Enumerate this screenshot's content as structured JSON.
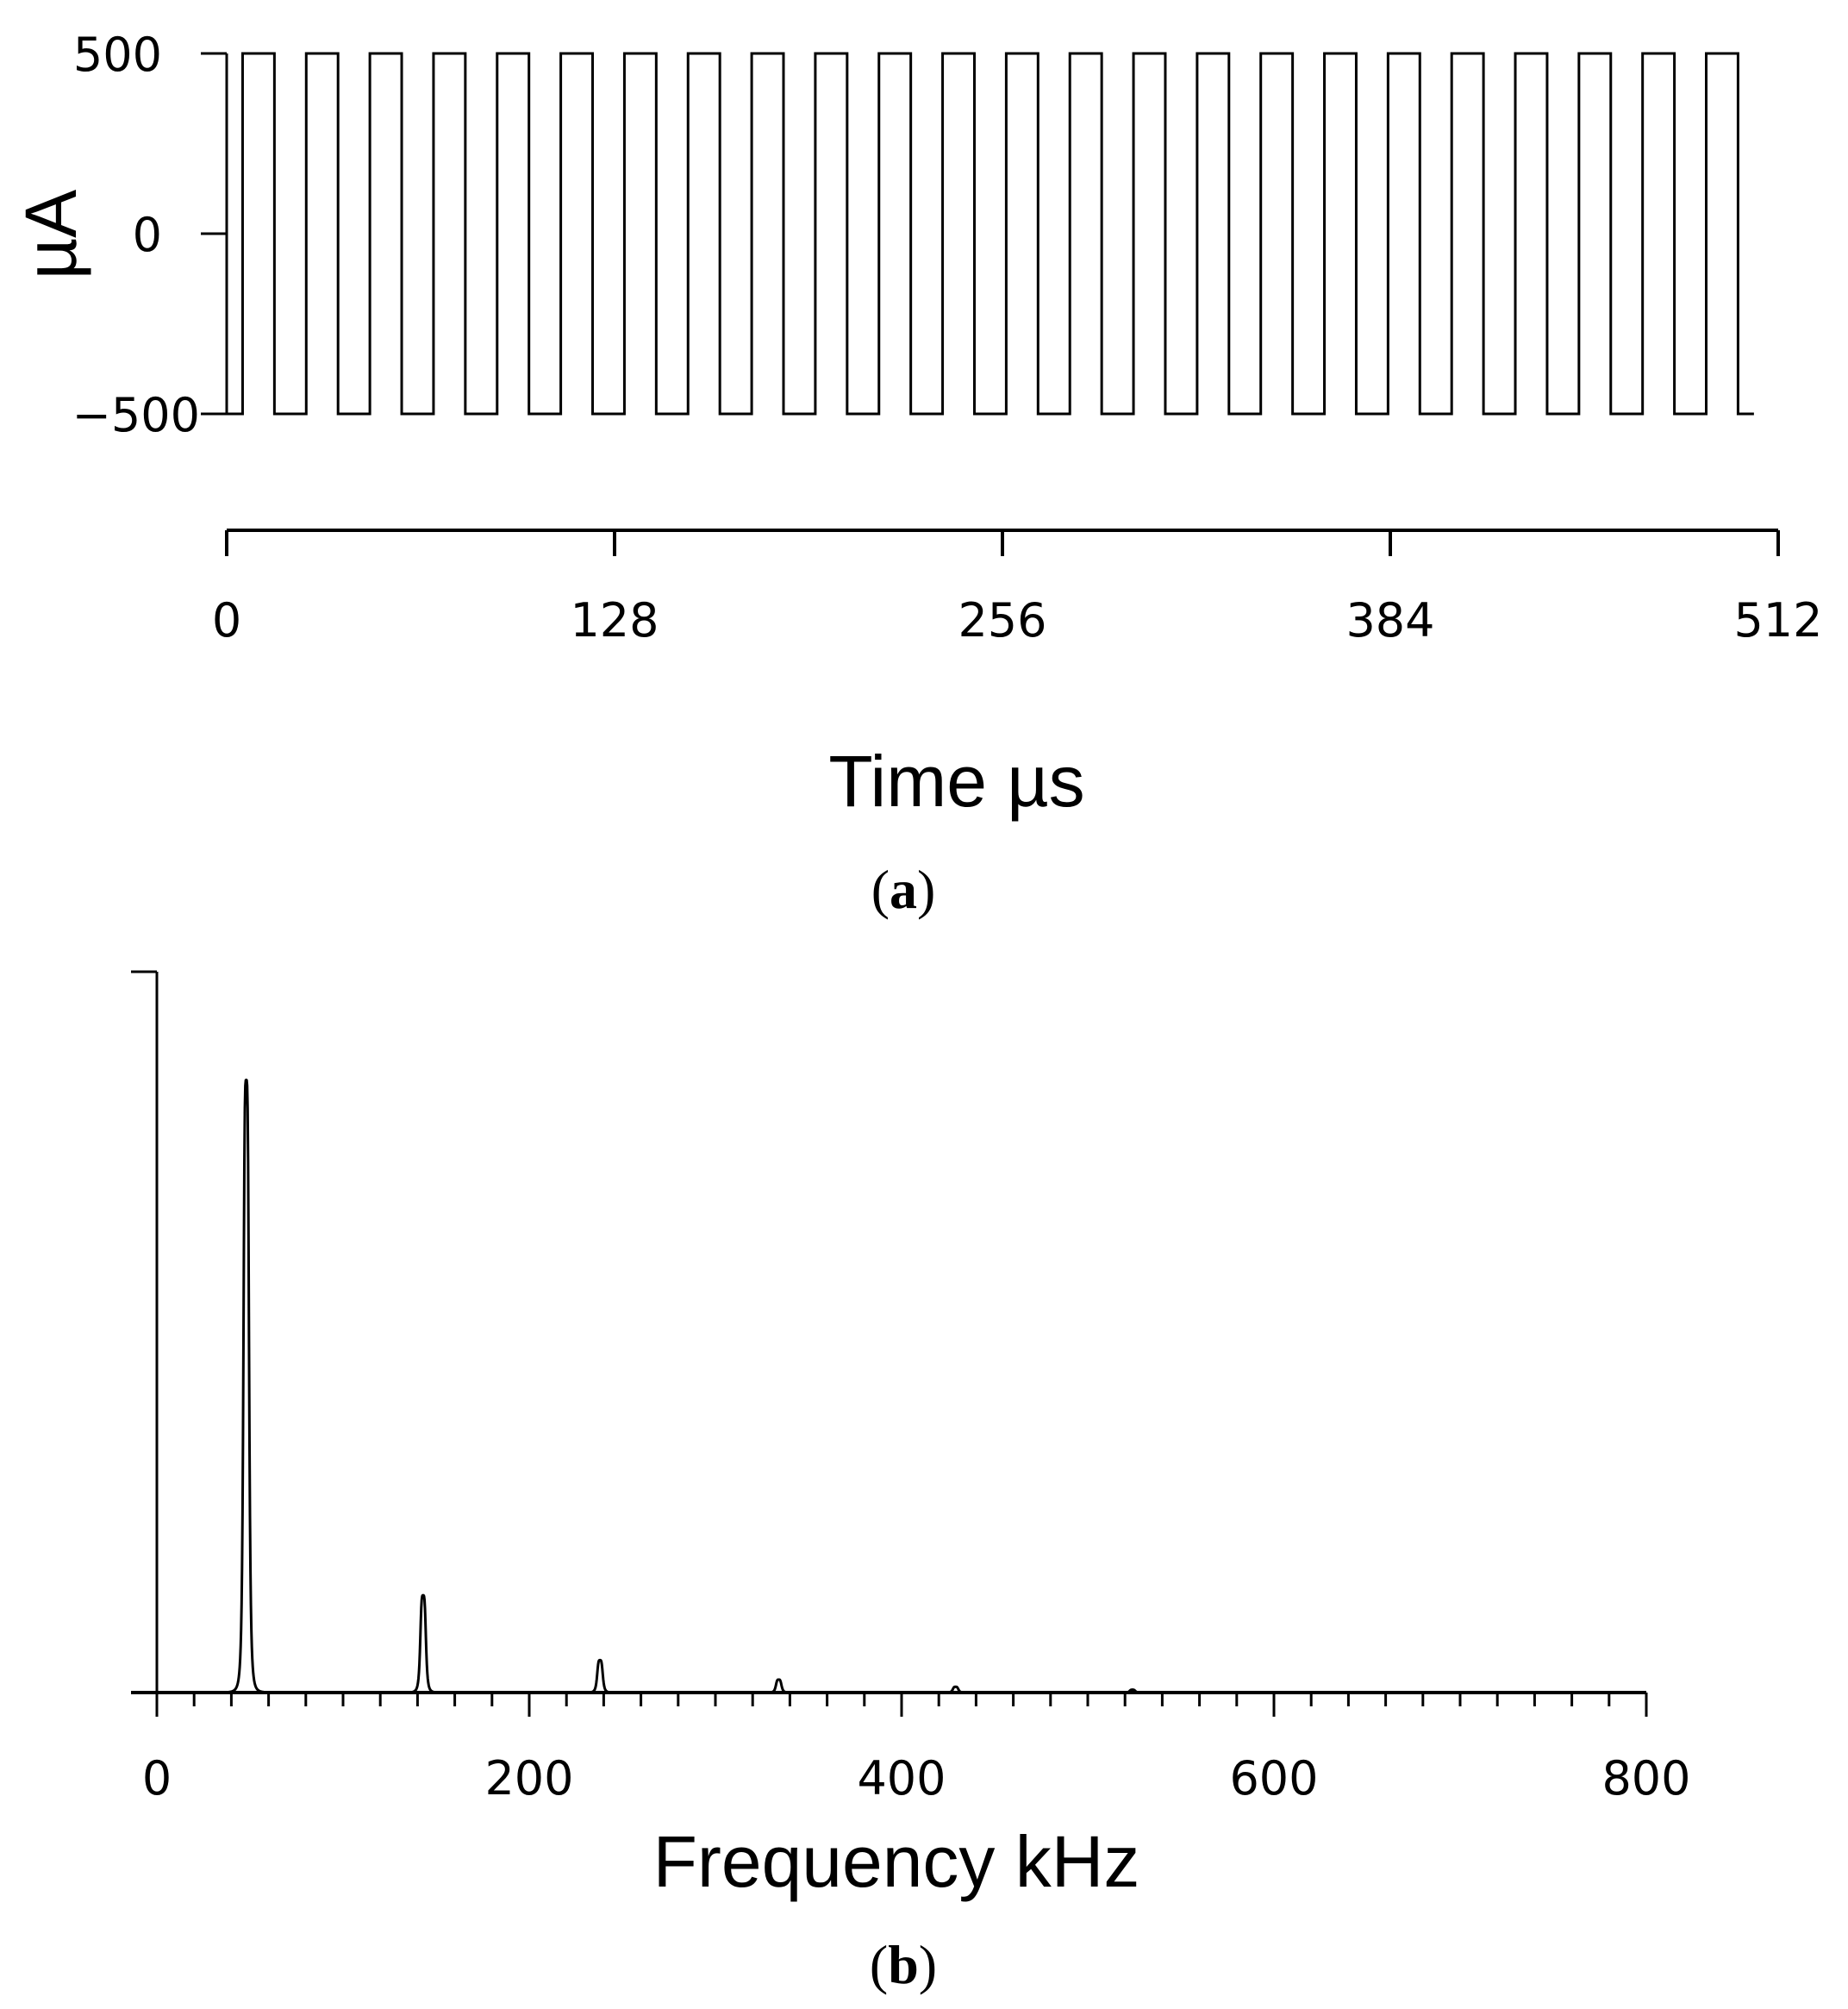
{
  "chart_data": [
    {
      "type": "line",
      "panel_label": "a",
      "xlabel": "Time  µs",
      "ylabel": "µA",
      "xlim": [
        0,
        512
      ],
      "ylim": [
        -500,
        500
      ],
      "x_ticks": [
        "0",
        "128",
        "256",
        "384",
        "512"
      ],
      "y_ticks": [
        "500",
        "0",
        "−500"
      ],
      "waveform": "square",
      "period_us": 21,
      "num_cycles": 24,
      "start_us": 0,
      "low_value": -500,
      "high_value": 500,
      "grid": false
    },
    {
      "type": "line",
      "panel_label": "b",
      "xlabel": "Frequency kHz",
      "ylabel": "",
      "xlim": [
        0,
        800
      ],
      "ylim": [
        0,
        1
      ],
      "x_ticks": [
        "0",
        "200",
        "400",
        "600",
        "800"
      ],
      "x_minor_step": 20,
      "peaks": [
        {
          "freq_khz": 48,
          "amplitude": 0.85
        },
        {
          "freq_khz": 143,
          "amplitude": 0.135
        },
        {
          "freq_khz": 238,
          "amplitude": 0.045
        },
        {
          "freq_khz": 334,
          "amplitude": 0.018
        },
        {
          "freq_khz": 429,
          "amplitude": 0.008
        },
        {
          "freq_khz": 524,
          "amplitude": 0.004
        }
      ],
      "grid": false
    }
  ]
}
